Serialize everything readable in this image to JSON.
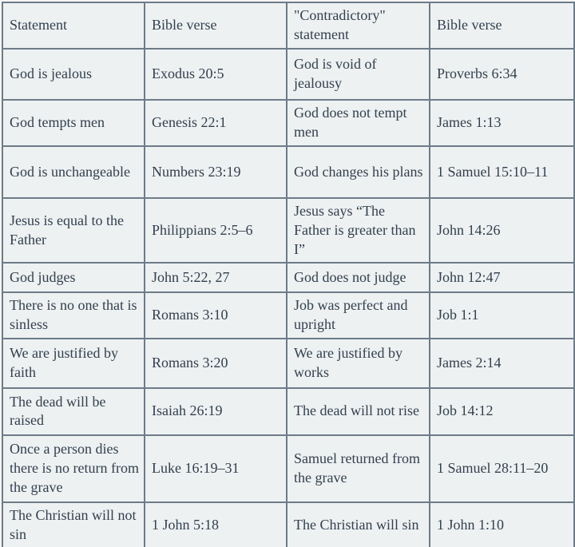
{
  "colors": {
    "background": "#edf1f2",
    "border": "#6e7b88",
    "text": "#33404e",
    "bottom_bar": "#6d8094"
  },
  "table": {
    "headers": [
      "Statement",
      "Bible verse",
      "\"Contradictory\" statement",
      "Bible verse"
    ],
    "rows": [
      [
        "God is jealous",
        "Exodus 20:5",
        "God is void of jealousy",
        "Proverbs 6:34"
      ],
      [
        "God tempts men",
        "Genesis 22:1",
        "God does not tempt men",
        "James 1:13"
      ],
      [
        "God is unchangeable",
        "Numbers 23:19",
        "God changes his plans",
        "1 Samuel 15:10–11"
      ],
      [
        "Jesus is equal to the Father",
        "Philippians 2:5–6",
        "Jesus says “The Father is greater than I”",
        "John 14:26"
      ],
      [
        "God judges",
        "John 5:22, 27",
        "God does not judge",
        "John 12:47"
      ],
      [
        "There is no one that is sinless",
        "Romans 3:10",
        "Job was perfect and upright",
        "Job 1:1"
      ],
      [
        "We are justified by faith",
        "Romans 3:20",
        "We are justified by works",
        "James 2:14"
      ],
      [
        "The dead will be raised",
        "Isaiah 26:19",
        "The dead will not rise",
        "Job 14:12"
      ],
      [
        "Once a person dies there is no return from the grave",
        "Luke 16:19–31",
        "Samuel returned from the grave",
        "1 Samuel 28:11–20"
      ],
      [
        "The Christian will not sin",
        "1 John 5:18",
        "The Christian will sin",
        "1 John 1:10"
      ]
    ]
  }
}
